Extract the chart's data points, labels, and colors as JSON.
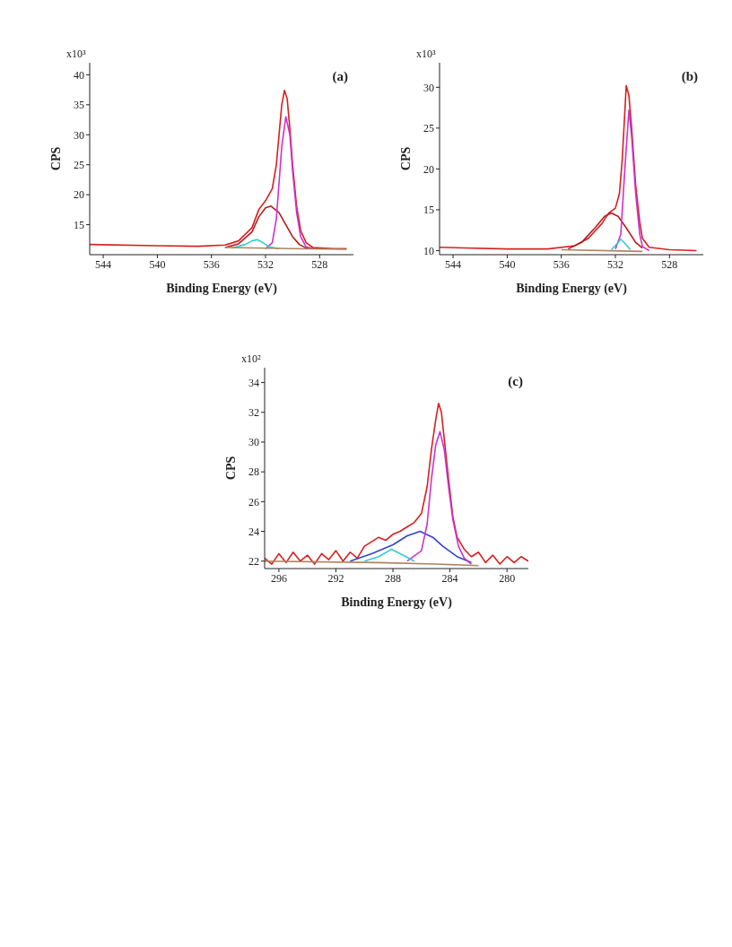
{
  "chart_data": [
    {
      "type": "line",
      "xlabel": "Binding Energy (eV)",
      "ylabel": "CPS",
      "annotations": [
        "x10³",
        "(a)"
      ],
      "xlim": [
        545,
        525.5
      ],
      "xticks": [
        544,
        540,
        536,
        532,
        528
      ],
      "ylim": [
        10,
        42
      ],
      "yticks": [
        15,
        20,
        25,
        30,
        35,
        40
      ],
      "marker": "none",
      "series": [
        {
          "color": "#d62020",
          "x": [
            545,
            540,
            537,
            535,
            534,
            533,
            532.5,
            532,
            531.5,
            531.2,
            531,
            530.8,
            530.6,
            530.4,
            530.2,
            530,
            529.7,
            529.4,
            529,
            528.5,
            527,
            526
          ],
          "values": [
            11.7,
            11.5,
            11.4,
            11.6,
            12.3,
            14.5,
            17.5,
            19,
            21,
            25,
            30,
            35,
            37.4,
            36,
            31,
            25,
            18,
            14,
            12,
            11.2,
            11,
            11
          ]
        },
        {
          "color": "#b71c1c",
          "x": [
            535,
            534,
            533,
            532.5,
            532,
            531.6,
            531,
            530.5,
            530,
            529.5,
            529,
            528
          ],
          "values": [
            11.2,
            11.8,
            13.8,
            16.3,
            17.8,
            18.1,
            17,
            15,
            13,
            11.7,
            11.1,
            11
          ]
        },
        {
          "color": "#cc33cc",
          "x": [
            532,
            531.5,
            531.2,
            531,
            530.8,
            530.5,
            530.2,
            530,
            529.7,
            529.4,
            529,
            528.5
          ],
          "values": [
            11,
            12,
            16,
            22,
            28,
            33,
            30,
            24,
            17,
            13,
            11.3,
            11
          ]
        },
        {
          "color": "#33cccc",
          "x": [
            534.5,
            533.5,
            533,
            532.6,
            532.2,
            531.7,
            531
          ],
          "values": [
            11.1,
            11.7,
            12.3,
            12.5,
            12,
            11.3,
            11
          ]
        },
        {
          "color": "#b08060",
          "x": [
            535,
            530,
            526
          ],
          "values": [
            11.2,
            11,
            10.9
          ]
        }
      ]
    },
    {
      "type": "line",
      "xlabel": "Binding Energy (eV)",
      "ylabel": "CPS",
      "annotations": [
        "x10³",
        "(b)"
      ],
      "xlim": [
        545,
        525.5
      ],
      "xticks": [
        544,
        540,
        536,
        532,
        528
      ],
      "ylim": [
        9.5,
        33
      ],
      "yticks": [
        10,
        15,
        20,
        25,
        30
      ],
      "marker": "none",
      "series": [
        {
          "color": "#d62020",
          "x": [
            545,
            540,
            537,
            535,
            534,
            533,
            532.5,
            532,
            531.7,
            531.5,
            531.3,
            531.2,
            531,
            530.8,
            530.5,
            530.2,
            530,
            529.5,
            528,
            526
          ],
          "values": [
            10.4,
            10.2,
            10.2,
            10.6,
            11.5,
            13.3,
            14.6,
            15.2,
            17,
            21,
            27,
            30.2,
            29,
            25,
            18,
            13.5,
            11.5,
            10.4,
            10.1,
            10
          ]
        },
        {
          "color": "#b71c1c",
          "x": [
            535.5,
            534.5,
            533.5,
            532.8,
            532.3,
            531.8,
            531.2,
            530.5,
            530
          ],
          "values": [
            10.2,
            11,
            12.8,
            14.2,
            14.6,
            14.2,
            12.8,
            11,
            10.3
          ]
        },
        {
          "color": "#cc33cc",
          "x": [
            532,
            531.6,
            531.3,
            531,
            530.8,
            530.5,
            530.2,
            530,
            529.5
          ],
          "values": [
            10.2,
            12,
            20,
            27.2,
            24,
            17,
            12,
            10.5,
            10
          ]
        },
        {
          "color": "#33cccc",
          "x": [
            532.3,
            531.9,
            531.6,
            531.3,
            530.9
          ],
          "values": [
            10.1,
            10.8,
            11.4,
            10.9,
            10.1
          ]
        },
        {
          "color": "#b08060",
          "x": [
            536,
            530
          ],
          "values": [
            10.1,
            9.9
          ]
        }
      ]
    },
    {
      "type": "line",
      "xlabel": "Binding Energy (eV)",
      "ylabel": "CPS",
      "annotations": [
        "x10²",
        "(c)"
      ],
      "xlim": [
        297,
        278.5
      ],
      "xticks": [
        296,
        292,
        288,
        284,
        280
      ],
      "ylim": [
        21.5,
        35
      ],
      "yticks": [
        22,
        24,
        26,
        28,
        30,
        32,
        34
      ],
      "marker": "none",
      "series": [
        {
          "color": "#d62020",
          "x": [
            297,
            296.5,
            296,
            295.5,
            295,
            294.5,
            294,
            293.5,
            293,
            292.5,
            292,
            291.5,
            291,
            290.5,
            290,
            289.5,
            289,
            288.5,
            288,
            287.5,
            287,
            286.5,
            286,
            285.6,
            285.3,
            285,
            284.8,
            284.6,
            284.4,
            284.1,
            283.8,
            283.5,
            283,
            282.5,
            282,
            281.5,
            281,
            280.5,
            280,
            279.5,
            279,
            278.5
          ],
          "values": [
            22.2,
            21.8,
            22.5,
            21.9,
            22.6,
            22,
            22.4,
            21.8,
            22.5,
            22.1,
            22.7,
            22,
            22.6,
            22.2,
            23,
            23.3,
            23.6,
            23.4,
            23.8,
            24,
            24.3,
            24.6,
            25.2,
            27,
            29.5,
            31.5,
            32.6,
            32,
            30.2,
            27.5,
            25,
            23.6,
            22.8,
            22.3,
            22.6,
            21.9,
            22.4,
            21.8,
            22.3,
            21.9,
            22.3,
            22
          ]
        },
        {
          "color": "#3344cc",
          "x": [
            291,
            289.5,
            288,
            287,
            286.1,
            285.2,
            284.5,
            283.5,
            282.5
          ],
          "values": [
            22,
            22.5,
            23.1,
            23.7,
            24,
            23.6,
            23,
            22.3,
            21.9
          ]
        },
        {
          "color": "#cc33cc",
          "x": [
            287,
            286,
            285.6,
            285.3,
            285,
            284.7,
            284.4,
            284.1,
            283.8,
            283.4,
            283,
            282.5
          ],
          "values": [
            22,
            22.7,
            24.5,
            27.5,
            29.8,
            30.7,
            29.5,
            27,
            24.8,
            23,
            22.2,
            21.8
          ]
        },
        {
          "color": "#33cccc",
          "x": [
            290,
            289,
            288.1,
            287.3,
            286.5
          ],
          "values": [
            22,
            22.3,
            22.8,
            22.4,
            22
          ]
        },
        {
          "color": "#b08060",
          "x": [
            297,
            289,
            285,
            282
          ],
          "values": [
            22,
            21.9,
            21.8,
            21.7
          ]
        }
      ]
    }
  ]
}
